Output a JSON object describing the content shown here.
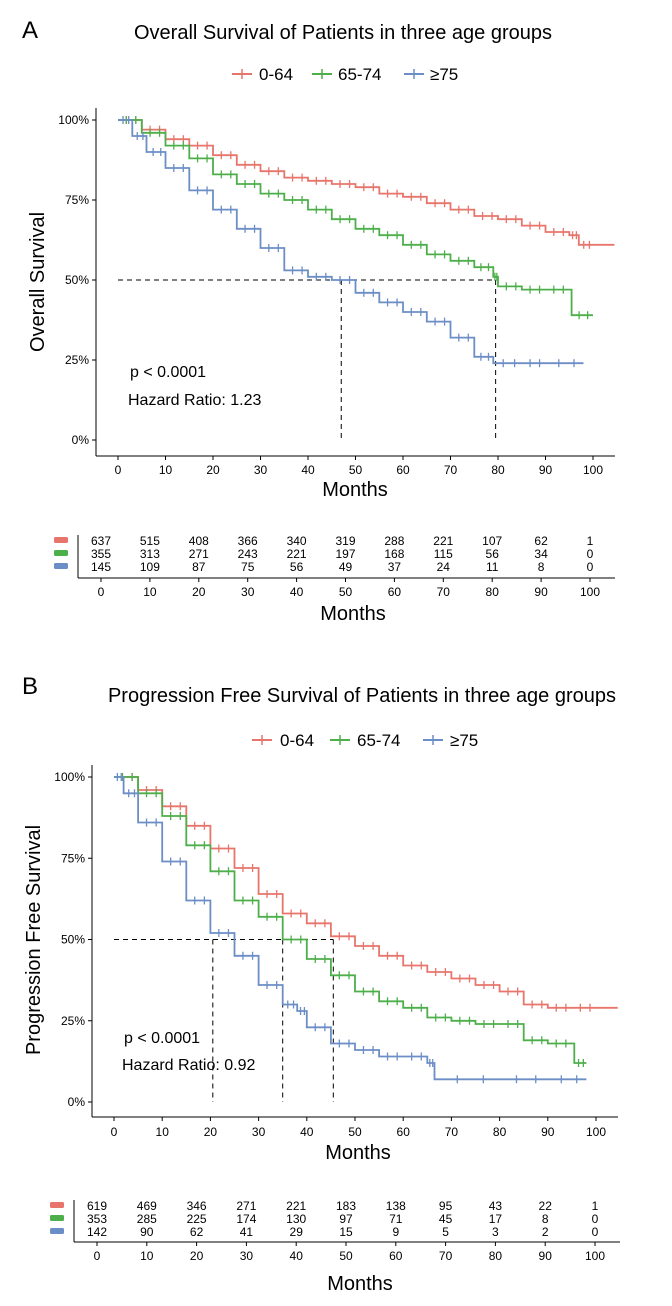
{
  "colors": {
    "young": "#E7756B",
    "mid": "#4DAF4A",
    "old": "#6C8EC6"
  },
  "chart_data": [
    {
      "type": "line",
      "panel_label": "A",
      "title": "Overall Survival of Patients in three age groups",
      "xlabel": "Months",
      "ylabel": "Overall Survival",
      "xlim": [
        0,
        100
      ],
      "ylim": [
        0,
        1
      ],
      "x_ticks": [
        "0",
        "10",
        "20",
        "30",
        "40",
        "50",
        "60",
        "70",
        "80",
        "90",
        "100"
      ],
      "y_ticks": [
        "0%",
        "25%",
        "50%",
        "75%",
        "100%"
      ],
      "legend": [
        "0-64",
        "65-74",
        "≥75"
      ],
      "legend_position": "top",
      "grid": false,
      "annotations": [
        "p < 0.0001",
        "Hazard Ratio: 1.23"
      ],
      "median_lines": [
        47,
        79.5
      ],
      "series": [
        {
          "name": "0-64",
          "color": "#E7756B",
          "x": [
            0,
            5,
            10,
            15,
            20,
            25,
            30,
            35,
            40,
            45,
            50,
            55,
            60,
            65,
            70,
            75,
            80,
            85,
            90,
            95,
            97,
            105
          ],
          "y": [
            1.0,
            0.97,
            0.94,
            0.92,
            0.89,
            0.86,
            0.84,
            0.82,
            0.81,
            0.8,
            0.79,
            0.77,
            0.76,
            0.74,
            0.72,
            0.7,
            0.69,
            0.67,
            0.65,
            0.64,
            0.61,
            0.61
          ]
        },
        {
          "name": "65-74",
          "color": "#4DAF4A",
          "x": [
            0,
            5,
            10,
            15,
            20,
            25,
            30,
            35,
            40,
            45,
            50,
            55,
            60,
            65,
            70,
            75,
            79,
            80,
            85,
            90,
            95,
            95.5,
            100
          ],
          "y": [
            1.0,
            0.96,
            0.92,
            0.88,
            0.83,
            0.8,
            0.77,
            0.75,
            0.72,
            0.69,
            0.66,
            0.64,
            0.61,
            0.58,
            0.56,
            0.54,
            0.51,
            0.48,
            0.47,
            0.47,
            0.47,
            0.39,
            0.39
          ]
        },
        {
          "name": "≥75",
          "color": "#6C8EC6",
          "x": [
            0,
            3,
            6,
            10,
            15,
            20,
            25,
            30,
            35,
            40,
            45,
            50,
            55,
            60,
            65,
            70,
            75,
            79,
            85,
            90,
            98
          ],
          "y": [
            1.0,
            0.95,
            0.9,
            0.85,
            0.78,
            0.72,
            0.66,
            0.6,
            0.53,
            0.51,
            0.5,
            0.46,
            0.43,
            0.4,
            0.37,
            0.32,
            0.26,
            0.24,
            0.24,
            0.24,
            0.24
          ]
        }
      ],
      "risk_table": {
        "xlabel": "Months",
        "times": [
          "0",
          "10",
          "20",
          "30",
          "40",
          "50",
          "60",
          "70",
          "80",
          "90",
          "100"
        ],
        "rows": [
          {
            "color": "#E7756B",
            "values": [
              "637",
              "515",
              "408",
              "366",
              "340",
              "319",
              "288",
              "221",
              "107",
              "62",
              "1"
            ]
          },
          {
            "color": "#4DAF4A",
            "values": [
              "355",
              "313",
              "271",
              "243",
              "221",
              "197",
              "168",
              "115",
              "56",
              "34",
              "0"
            ]
          },
          {
            "color": "#6C8EC6",
            "values": [
              "145",
              "109",
              "87",
              "75",
              "56",
              "49",
              "37",
              "24",
              "11",
              "8",
              "0"
            ]
          }
        ]
      }
    },
    {
      "type": "line",
      "panel_label": "B",
      "title": "Progression Free Survival of Patients in three age groups",
      "xlabel": "Months",
      "ylabel": "Progression Free Survival",
      "xlim": [
        0,
        100
      ],
      "ylim": [
        0,
        1
      ],
      "x_ticks": [
        "0",
        "10",
        "20",
        "30",
        "40",
        "50",
        "60",
        "70",
        "80",
        "90",
        "100"
      ],
      "y_ticks": [
        "0%",
        "25%",
        "50%",
        "75%",
        "100%"
      ],
      "legend": [
        "0-64",
        "65-74",
        "≥75"
      ],
      "legend_position": "top",
      "grid": false,
      "annotations": [
        "p < 0.0001",
        "Hazard Ratio: 0.92"
      ],
      "median_lines": [
        20.5,
        35,
        45.5
      ],
      "series": [
        {
          "name": "0-64",
          "color": "#E7756B",
          "x": [
            0,
            5,
            10,
            15,
            20,
            25,
            30,
            35,
            40,
            45,
            50,
            55,
            60,
            65,
            70,
            75,
            80,
            85,
            90,
            95,
            105
          ],
          "y": [
            1.0,
            0.96,
            0.91,
            0.85,
            0.78,
            0.72,
            0.64,
            0.58,
            0.55,
            0.51,
            0.48,
            0.45,
            0.42,
            0.4,
            0.38,
            0.36,
            0.34,
            0.3,
            0.29,
            0.29,
            0.29
          ]
        },
        {
          "name": "65-74",
          "color": "#4DAF4A",
          "x": [
            0,
            5,
            10,
            15,
            20,
            25,
            30,
            35,
            40,
            45,
            50,
            55,
            60,
            65,
            70,
            75,
            80,
            85,
            90,
            95,
            95.5,
            98
          ],
          "y": [
            1.0,
            0.95,
            0.88,
            0.79,
            0.71,
            0.62,
            0.57,
            0.5,
            0.44,
            0.39,
            0.34,
            0.31,
            0.29,
            0.26,
            0.25,
            0.24,
            0.24,
            0.19,
            0.18,
            0.18,
            0.12,
            0.12
          ]
        },
        {
          "name": "≥75",
          "color": "#6C8EC6",
          "x": [
            0,
            2,
            5,
            10,
            15,
            20,
            25,
            30,
            35,
            38,
            40,
            45,
            50,
            55,
            60,
            65,
            66.5,
            80,
            90,
            98
          ],
          "y": [
            1.0,
            0.95,
            0.86,
            0.74,
            0.62,
            0.52,
            0.45,
            0.36,
            0.3,
            0.28,
            0.23,
            0.18,
            0.16,
            0.14,
            0.14,
            0.12,
            0.07,
            0.07,
            0.07,
            0.07
          ]
        }
      ],
      "risk_table": {
        "xlabel": "Months",
        "times": [
          "0",
          "10",
          "20",
          "30",
          "40",
          "50",
          "60",
          "70",
          "80",
          "90",
          "100"
        ],
        "rows": [
          {
            "color": "#E7756B",
            "values": [
              "619",
              "469",
              "346",
              "271",
              "221",
              "183",
              "138",
              "95",
              "43",
              "22",
              "1"
            ]
          },
          {
            "color": "#4DAF4A",
            "values": [
              "353",
              "285",
              "225",
              "174",
              "130",
              "97",
              "71",
              "45",
              "17",
              "8",
              "0"
            ]
          },
          {
            "color": "#6C8EC6",
            "values": [
              "142",
              "90",
              "62",
              "41",
              "29",
              "15",
              "9",
              "5",
              "3",
              "2",
              "0"
            ]
          }
        ]
      }
    }
  ]
}
